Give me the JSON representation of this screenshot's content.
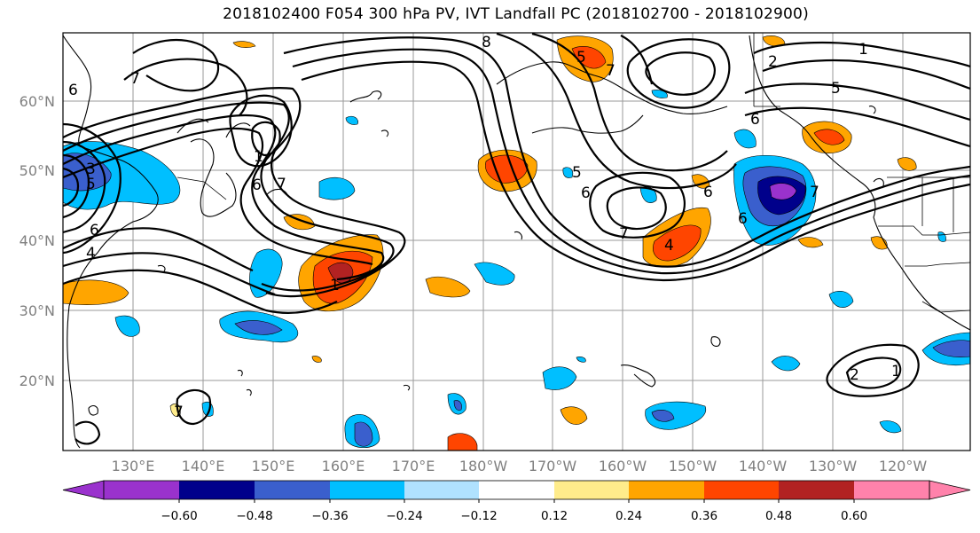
{
  "title": "2018102400 F054 300 hPa PV, IVT Landfall PC (2018102700 - 2018102900)",
  "latitude_labels": [
    "60°N",
    "50°N",
    "40°N",
    "30°N",
    "20°N"
  ],
  "longitude_labels": [
    "130°E",
    "140°E",
    "150°E",
    "160°E",
    "170°E",
    "180°W",
    "170°W",
    "160°W",
    "150°W",
    "140°W",
    "130°W",
    "120°W"
  ],
  "colorbar": {
    "tick_labels": [
      "−0.60",
      "−0.48",
      "−0.36",
      "−0.24",
      "−0.12",
      "0.12",
      "0.24",
      "0.36",
      "0.48",
      "0.60"
    ],
    "colors": [
      "#9a32cd",
      "#00008b",
      "#3a5fcd",
      "#00bfff",
      "#b0e2ff",
      "#ffffff",
      "#ffec8b",
      "#ffa500",
      "#ff4500",
      "#b22222",
      "#ff82ab"
    ]
  },
  "pv_contour_labels": [
    "6",
    "3",
    "5",
    "4",
    "6",
    "7",
    "1",
    "7",
    "8",
    "5",
    "6",
    "7",
    "1",
    "6",
    "7",
    "5",
    "6",
    "7",
    "4",
    "6",
    "1",
    "2",
    "5",
    "6",
    "1",
    "2",
    "7"
  ]
}
